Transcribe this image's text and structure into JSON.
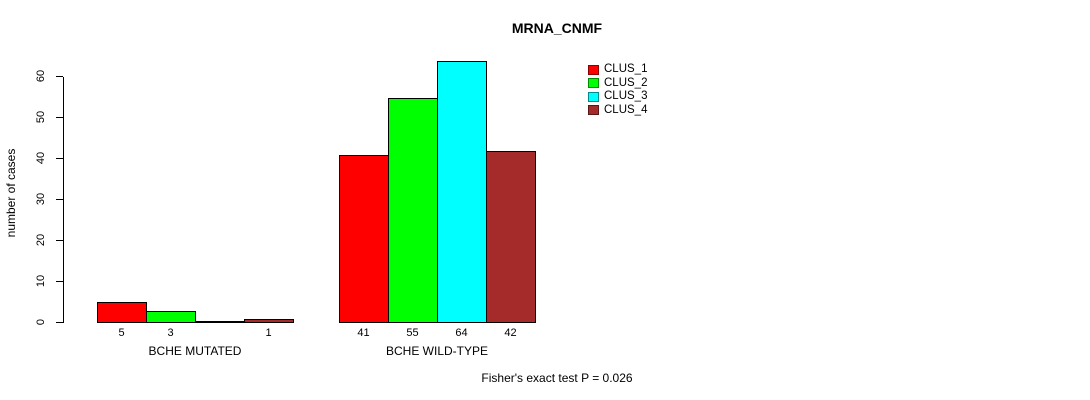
{
  "chart_data": {
    "type": "bar",
    "title": "MRNA_CNMF",
    "xlabel": "",
    "ylabel": "number of cases",
    "ylim": [
      0,
      60
    ],
    "yticks": [
      0,
      10,
      20,
      30,
      40,
      50,
      60
    ],
    "grid": false,
    "legend_position": "top-right",
    "categories": [
      "BCHE MUTATED",
      "BCHE WILD-TYPE"
    ],
    "series": [
      {
        "name": "CLUS_1",
        "color": "#ff0000",
        "values": [
          5,
          41
        ]
      },
      {
        "name": "CLUS_2",
        "color": "#00ff00",
        "values": [
          3,
          55
        ]
      },
      {
        "name": "CLUS_3",
        "color": "#00ffff",
        "values": [
          0,
          64
        ]
      },
      {
        "name": "CLUS_4",
        "color": "#a52a2a",
        "values": [
          1,
          42
        ]
      }
    ],
    "value_labels_shown": [
      [
        "5",
        "3",
        "",
        "1"
      ],
      [
        "41",
        "55",
        "64",
        "42"
      ]
    ],
    "annotation": "Fisher's exact test P = 0.026",
    "colors": {
      "bar_border": "#000000",
      "axis": "#000000",
      "text": "#000000",
      "background": "#ffffff"
    }
  }
}
